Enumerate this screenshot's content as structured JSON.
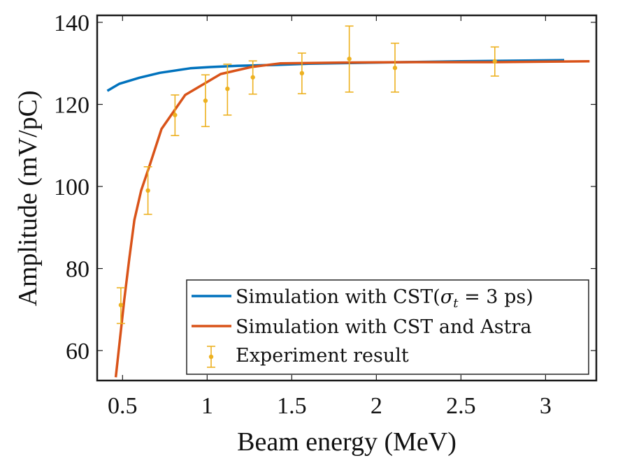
{
  "chart_data": {
    "type": "line",
    "title": "",
    "xlabel": "Beam energy (MeV)",
    "ylabel": "Amplitude (mV/pC)",
    "xlim": [
      0.35,
      3.3
    ],
    "ylim": [
      52.7,
      141.7
    ],
    "xticks": [
      0.5,
      1,
      1.5,
      2,
      2.5,
      3
    ],
    "xtick_labels": [
      "0.5",
      "1",
      "1.5",
      "2",
      "2.5",
      "3"
    ],
    "yticks": [
      60,
      80,
      100,
      120,
      140
    ],
    "ytick_labels": [
      "60",
      "80",
      "100",
      "120",
      "140"
    ],
    "grid": false,
    "legend_position": "bottom-right",
    "series": [
      {
        "name": "Simulation with CST(σ_t = 3 ps)",
        "legend_label": "Simulation with CST(",
        "legend_math": "σ",
        "legend_sub": "t",
        "legend_tail": " = 3 ps)",
        "kind": "line",
        "color": "#0072BD",
        "x": [
          0.41,
          0.48,
          0.6,
          0.72,
          0.9,
          1.02,
          1.18,
          1.39,
          1.6,
          2.0,
          2.5,
          3.11
        ],
        "y": [
          123.3,
          125.0,
          126.5,
          127.7,
          128.8,
          129.1,
          129.4,
          129.6,
          129.9,
          130.2,
          130.5,
          130.8
        ]
      },
      {
        "name": "Simulation with CST and Astra",
        "legend_label": "Simulation with CST and Astra",
        "kind": "line",
        "color": "#D95319",
        "x": [
          0.46,
          0.51,
          0.54,
          0.57,
          0.61,
          0.66,
          0.73,
          0.87,
          1.08,
          1.26,
          1.43,
          1.8,
          2.2,
          2.7,
          3.26
        ],
        "y": [
          53.5,
          72.3,
          82.5,
          91.8,
          99.0,
          105.1,
          114.0,
          122.3,
          127.4,
          129.1,
          130.0,
          130.2,
          130.3,
          130.3,
          130.5
        ]
      },
      {
        "name": "Experiment result",
        "legend_label": "Experiment result",
        "kind": "errorbar",
        "color": "#EDB120",
        "x": [
          0.49,
          0.65,
          0.81,
          0.99,
          1.12,
          1.27,
          1.56,
          1.84,
          2.11,
          2.7
        ],
        "y": [
          71.1,
          99.0,
          117.4,
          120.9,
          123.8,
          126.6,
          127.6,
          131.1,
          128.9,
          130.5
        ],
        "y_upper": [
          75.3,
          104.8,
          122.3,
          127.2,
          129.8,
          130.6,
          132.5,
          139.1,
          134.9,
          134.0
        ],
        "y_lower": [
          66.6,
          93.2,
          112.4,
          114.6,
          117.4,
          122.5,
          122.6,
          123.0,
          123.0,
          126.9
        ]
      }
    ]
  }
}
